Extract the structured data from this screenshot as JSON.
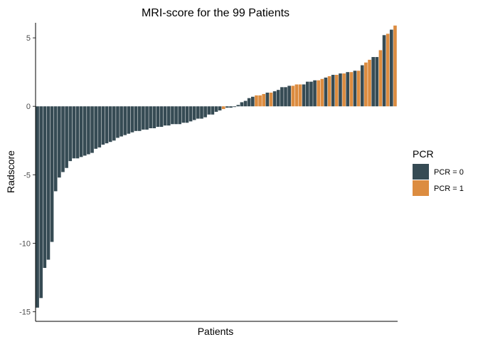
{
  "chart_data": {
    "type": "bar",
    "title": "MRI-score for the 99 Patients",
    "xlabel": "Patients",
    "ylabel": "Radscore",
    "ylim": [
      -15.7,
      6.1
    ],
    "yticks": [
      5,
      0,
      -5,
      -10,
      -15
    ],
    "grid": false,
    "legend": {
      "title": "PCR",
      "position": "right",
      "entries": [
        {
          "label": "PCR = 0",
          "color": "#364B54"
        },
        {
          "label": "PCR = 1",
          "color": "#DC8C40"
        }
      ]
    },
    "values": [
      -14.7,
      -14.0,
      -11.8,
      -11.2,
      -9.9,
      -6.2,
      -5.2,
      -4.8,
      -4.5,
      -4.0,
      -3.8,
      -3.8,
      -3.7,
      -3.6,
      -3.5,
      -3.4,
      -3.1,
      -3.0,
      -2.8,
      -2.7,
      -2.6,
      -2.5,
      -2.3,
      -2.2,
      -2.1,
      -2.0,
      -1.9,
      -1.8,
      -1.8,
      -1.7,
      -1.7,
      -1.6,
      -1.6,
      -1.5,
      -1.5,
      -1.4,
      -1.4,
      -1.3,
      -1.3,
      -1.3,
      -1.2,
      -1.2,
      -1.1,
      -1.0,
      -0.9,
      -0.9,
      -0.8,
      -0.6,
      -0.6,
      -0.4,
      -0.3,
      -0.2,
      -0.1,
      -0.1,
      -0.05,
      0.1,
      0.3,
      0.4,
      0.6,
      0.7,
      0.8,
      0.8,
      0.9,
      1.0,
      1.0,
      1.1,
      1.2,
      1.4,
      1.4,
      1.5,
      1.5,
      1.6,
      1.6,
      1.6,
      1.8,
      1.8,
      1.9,
      1.9,
      2.0,
      2.1,
      2.2,
      2.3,
      2.3,
      2.4,
      2.4,
      2.5,
      2.5,
      2.6,
      2.6,
      3.0,
      3.2,
      3.4,
      3.6,
      3.6,
      4.1,
      5.2,
      5.3,
      5.6,
      5.9
    ],
    "pcr": [
      0,
      0,
      0,
      0,
      0,
      0,
      0,
      0,
      0,
      0,
      0,
      0,
      0,
      0,
      0,
      0,
      0,
      0,
      0,
      0,
      0,
      0,
      0,
      0,
      0,
      0,
      0,
      0,
      0,
      0,
      0,
      0,
      0,
      0,
      0,
      0,
      0,
      0,
      0,
      0,
      0,
      0,
      0,
      0,
      0,
      0,
      0,
      0,
      0,
      0,
      0,
      1,
      0,
      0,
      0,
      0,
      0,
      0,
      0,
      0,
      1,
      1,
      1,
      0,
      1,
      0,
      0,
      0,
      0,
      0,
      1,
      1,
      1,
      0,
      0,
      0,
      0,
      1,
      1,
      0,
      1,
      0,
      1,
      0,
      1,
      0,
      1,
      0,
      1,
      0,
      1,
      1,
      0,
      0,
      1,
      0,
      1,
      0,
      1
    ]
  }
}
